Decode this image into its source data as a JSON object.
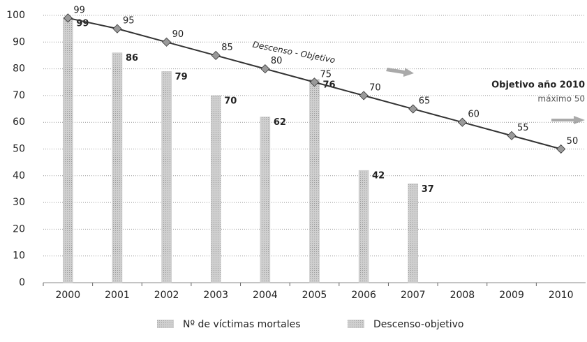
{
  "chart_data": {
    "type": "bar",
    "categories": [
      "2000",
      "2001",
      "2002",
      "2003",
      "2004",
      "2005",
      "2006",
      "2007",
      "2008",
      "2009",
      "2010"
    ],
    "series": [
      {
        "name": "Nº de víctimas mortales",
        "type": "bar",
        "color": "#c4c4c4",
        "values": [
          99,
          86,
          79,
          70,
          62,
          76,
          42,
          37,
          null,
          null,
          null
        ]
      },
      {
        "name": "Descenso-objetivo",
        "type": "line",
        "color": "#333333",
        "marker_color": "#9a9a9a",
        "values": [
          99,
          95,
          90,
          85,
          80,
          75,
          70,
          65,
          60,
          55,
          50
        ]
      }
    ],
    "ylim": [
      0,
      100
    ],
    "yticks": [
      0,
      10,
      20,
      30,
      40,
      50,
      60,
      70,
      80,
      90,
      100
    ],
    "grid": true,
    "annotations": [
      "Descenso - Objetivo",
      "Objetivo año 2010",
      "máximo 50"
    ],
    "legend": "bottom"
  }
}
